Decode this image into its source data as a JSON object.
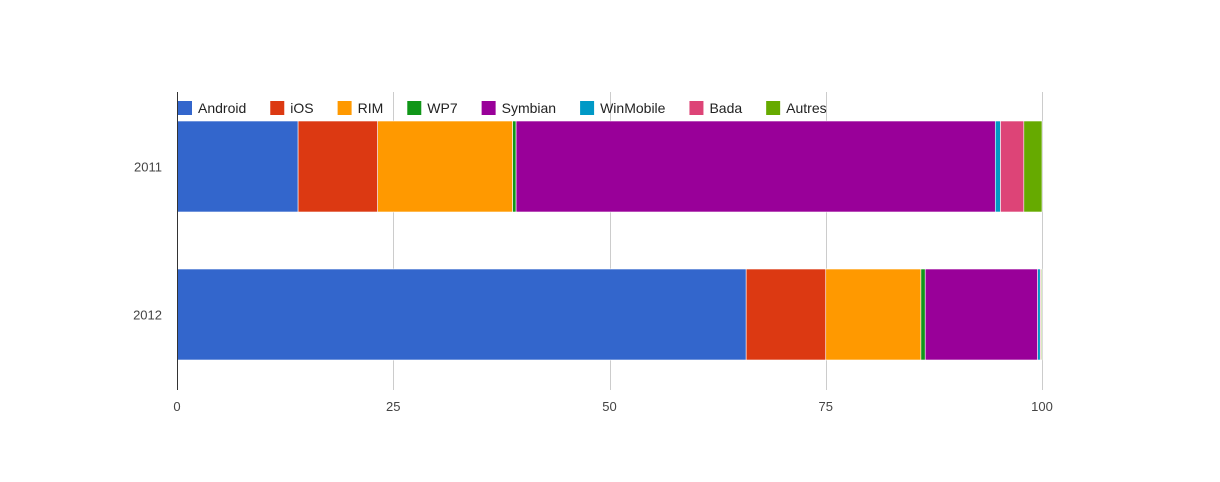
{
  "chart_data": {
    "type": "bar",
    "orientation": "horizontal",
    "stacked": true,
    "title": "",
    "xlabel": "",
    "ylabel": "",
    "categories": [
      "2011",
      "2012"
    ],
    "xlim": [
      0,
      100
    ],
    "x_ticks": [
      0,
      25,
      50,
      75,
      100
    ],
    "grid": true,
    "legend_position": "top",
    "series": [
      {
        "name": "Android",
        "color": "#3366cc",
        "values": [
          14.0,
          65.8
        ]
      },
      {
        "name": "iOS",
        "color": "#dc3912",
        "values": [
          9.2,
          9.2
        ]
      },
      {
        "name": "RIM",
        "color": "#ff9900",
        "values": [
          15.6,
          11.0
        ]
      },
      {
        "name": "WP7",
        "color": "#109618",
        "values": [
          0.4,
          0.5
        ]
      },
      {
        "name": "Symbian",
        "color": "#990099",
        "values": [
          55.4,
          13.0
        ]
      },
      {
        "name": "WinMobile",
        "color": "#0099c6",
        "values": [
          0.6,
          0.3
        ]
      },
      {
        "name": "Bada",
        "color": "#dd4477",
        "values": [
          2.7,
          0.1
        ]
      },
      {
        "name": "Autres",
        "color": "#66aa00",
        "values": [
          2.1,
          0.1
        ]
      }
    ]
  }
}
